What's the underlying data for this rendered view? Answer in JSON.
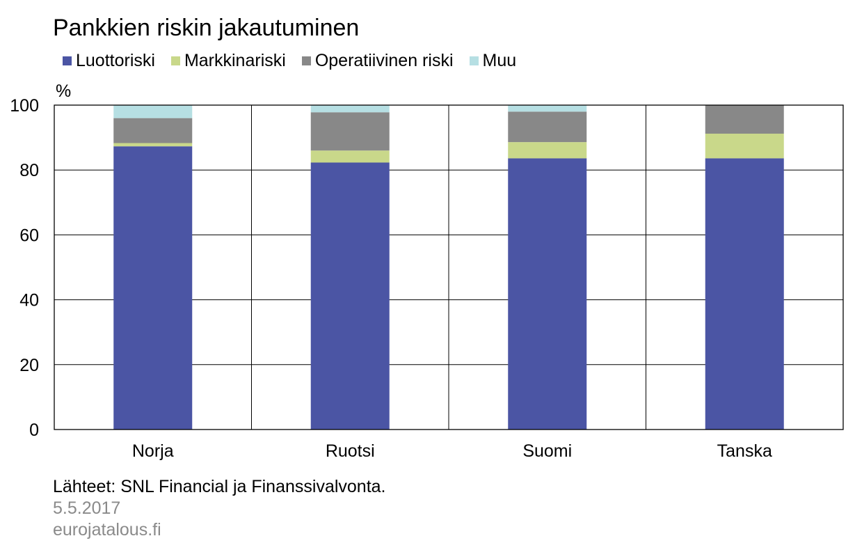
{
  "chart_data": {
    "type": "bar",
    "stacked": true,
    "title": "Pankkien riskin jakautuminen",
    "ylabel": "%",
    "ylim": [
      0,
      100
    ],
    "yticks": [
      0,
      20,
      40,
      60,
      80,
      100
    ],
    "grid": true,
    "legend_position": "top",
    "categories": [
      "Norja",
      "Ruotsi",
      "Suomi",
      "Tanska"
    ],
    "series": [
      {
        "name": "Luottoriski",
        "color": "#4b55a4",
        "values": [
          87.3,
          82.3,
          83.6,
          83.6
        ]
      },
      {
        "name": "Markkinariski",
        "color": "#c9d88a",
        "values": [
          1.0,
          3.7,
          5.0,
          7.6
        ]
      },
      {
        "name": "Operatiivinen riski",
        "color": "#888888",
        "values": [
          7.7,
          11.8,
          9.4,
          8.8
        ]
      },
      {
        "name": "Muu",
        "color": "#b6dfe3",
        "values": [
          4.0,
          2.2,
          2.0,
          0.0
        ]
      }
    ]
  },
  "footer": {
    "source": "Lähteet: SNL Financial ja Finanssivalvonta.",
    "date": "5.5.2017",
    "site": "eurojatalous.fi"
  }
}
